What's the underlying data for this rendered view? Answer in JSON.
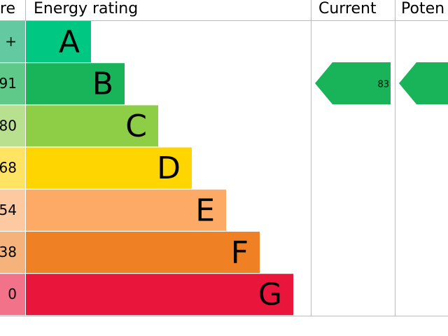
{
  "header": {
    "score": "re",
    "rating": "Energy rating",
    "current": "Current",
    "potential": "Poten"
  },
  "bands": [
    {
      "letter": "A",
      "score": "+"
    },
    {
      "letter": "B",
      "score": "91"
    },
    {
      "letter": "C",
      "score": "80"
    },
    {
      "letter": "D",
      "score": "68"
    },
    {
      "letter": "E",
      "score": "54"
    },
    {
      "letter": "F",
      "score": "38"
    },
    {
      "letter": "G",
      "score": "0"
    }
  ],
  "current": {
    "value": "83"
  }
}
